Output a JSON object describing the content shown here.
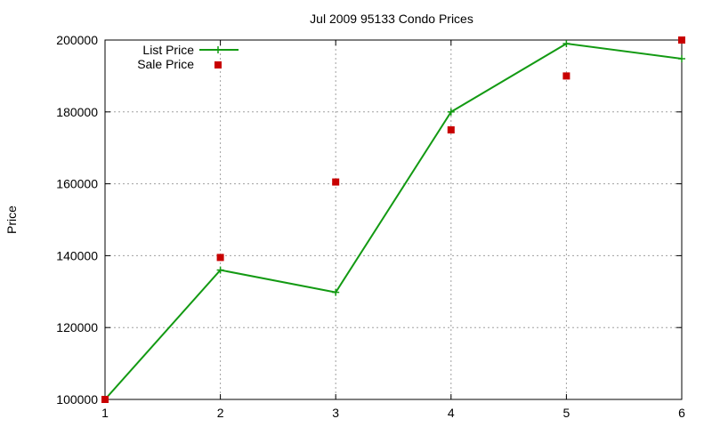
{
  "chart_data": {
    "type": "line",
    "title": "Jul 2009 95133 Condo Prices",
    "xlabel": "",
    "ylabel": "Price",
    "x": [
      1,
      2,
      3,
      4,
      5,
      6
    ],
    "xlim": [
      1,
      6
    ],
    "ylim": [
      100000,
      200000
    ],
    "x_ticks": [
      "1",
      "2",
      "3",
      "4",
      "5",
      "6"
    ],
    "y_ticks": [
      "100000",
      "120000",
      "140000",
      "160000",
      "180000",
      "200000"
    ],
    "grid": true,
    "legend_position": "top-left",
    "series": [
      {
        "name": "List Price",
        "style": "line",
        "color": "#139a13",
        "values": [
          100000,
          136000,
          129800,
          180000,
          199000,
          194800
        ]
      },
      {
        "name": "Sale Price",
        "style": "points",
        "color": "#c80000",
        "values": [
          100000,
          139500,
          160500,
          175000,
          190000,
          200000
        ]
      }
    ]
  }
}
